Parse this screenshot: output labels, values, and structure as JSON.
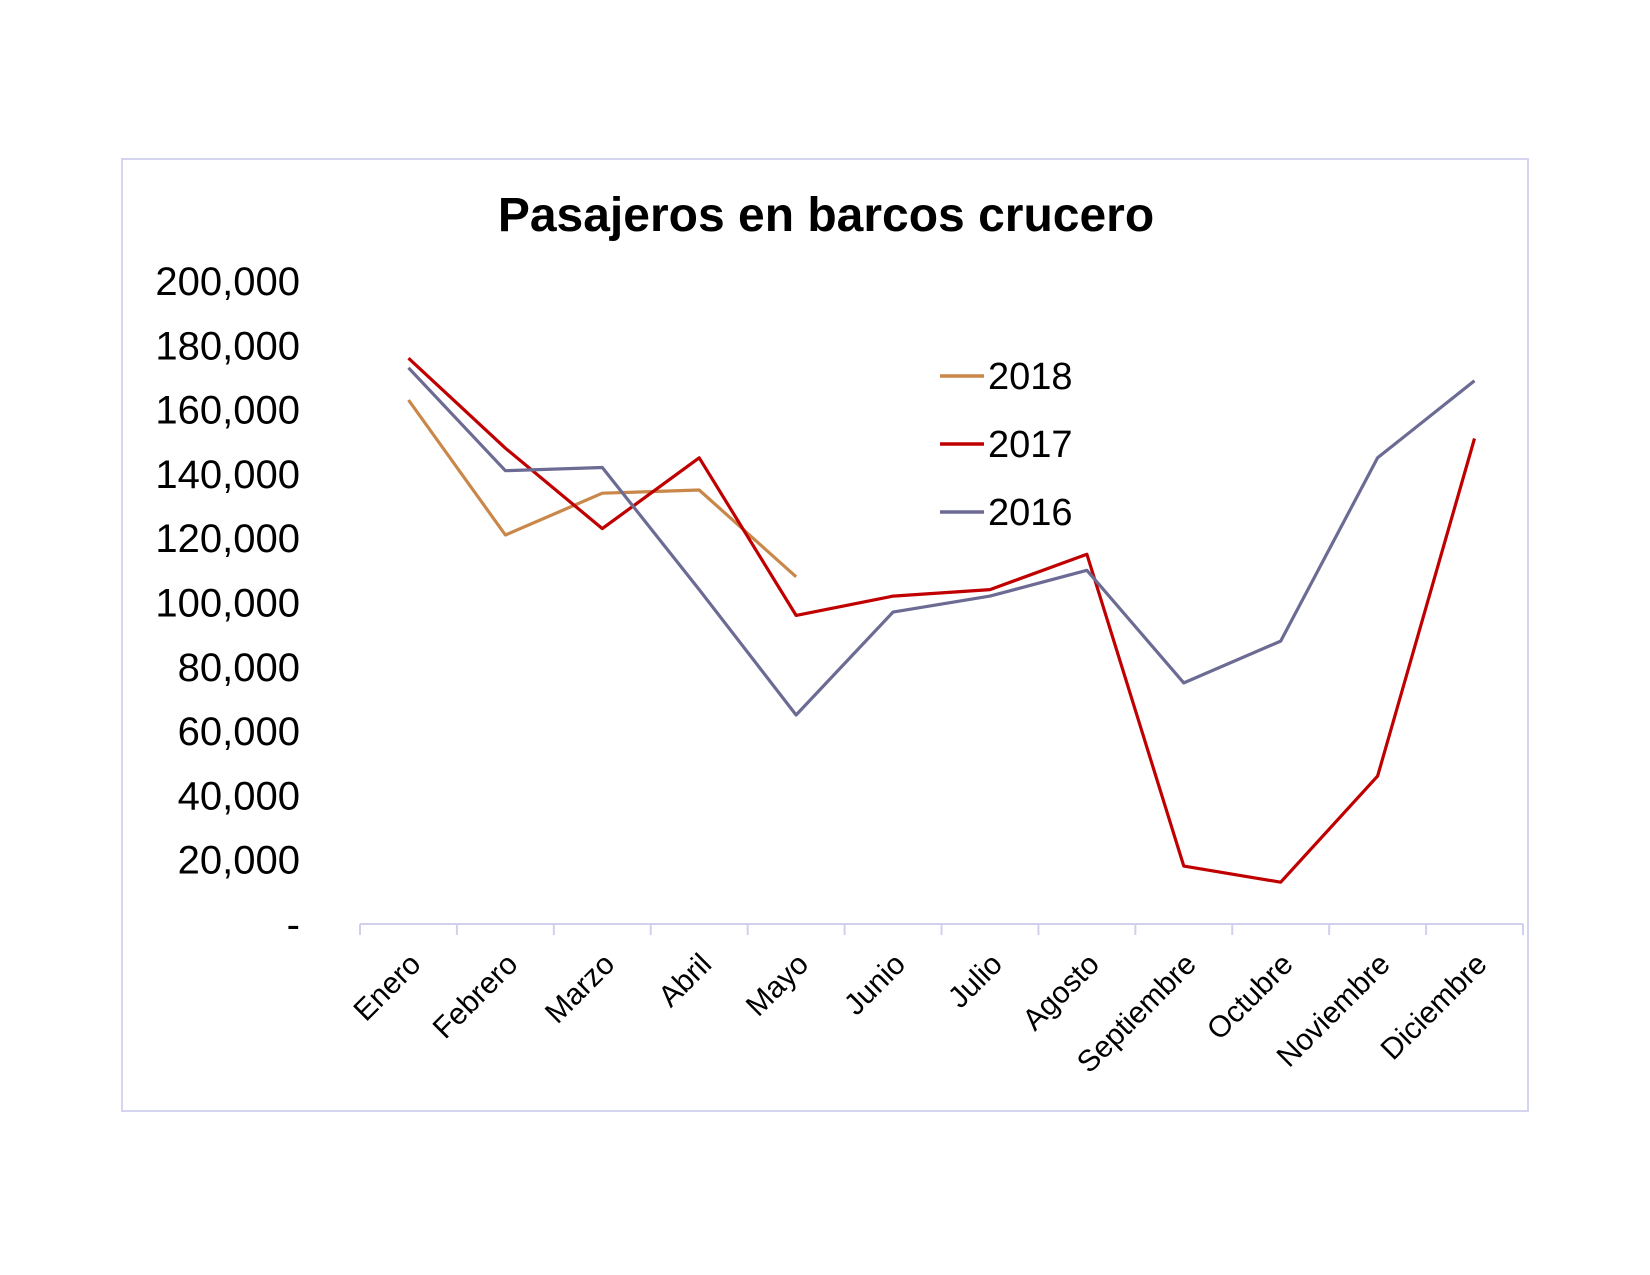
{
  "chart_data": {
    "type": "line",
    "title": "Pasajeros en barcos crucero",
    "xlabel": "",
    "ylabel": "",
    "categories": [
      "Enero",
      "Febrero",
      "Marzo",
      "Abril",
      "Mayo",
      "Junio",
      "Julio",
      "Agosto",
      "Septiembre",
      "Octubre",
      "Noviembre",
      "Diciembre"
    ],
    "ylim": [
      0,
      200000
    ],
    "yticks": [
      0,
      20000,
      40000,
      60000,
      80000,
      100000,
      120000,
      140000,
      160000,
      180000,
      200000
    ],
    "ytick_labels": [
      "-",
      "20,000",
      "40,000",
      "60,000",
      "80,000",
      "100,000",
      "120,000",
      "140,000",
      "160,000",
      "180,000",
      "200,000"
    ],
    "grid": false,
    "legend_position": "top-right",
    "series": [
      {
        "name": "2018",
        "color": "#c9874a",
        "values": [
          163000,
          121000,
          134000,
          135000,
          108000,
          null,
          null,
          null,
          null,
          null,
          null,
          null
        ]
      },
      {
        "name": "2017",
        "color": "#c00000",
        "values": [
          176000,
          148000,
          123000,
          145000,
          96000,
          102000,
          104000,
          115000,
          18000,
          13000,
          46000,
          151000
        ]
      },
      {
        "name": "2016",
        "color": "#6b6b94",
        "values": [
          173000,
          141000,
          142000,
          104000,
          65000,
          97000,
          102000,
          110000,
          75000,
          88000,
          145000,
          169000
        ]
      }
    ]
  }
}
